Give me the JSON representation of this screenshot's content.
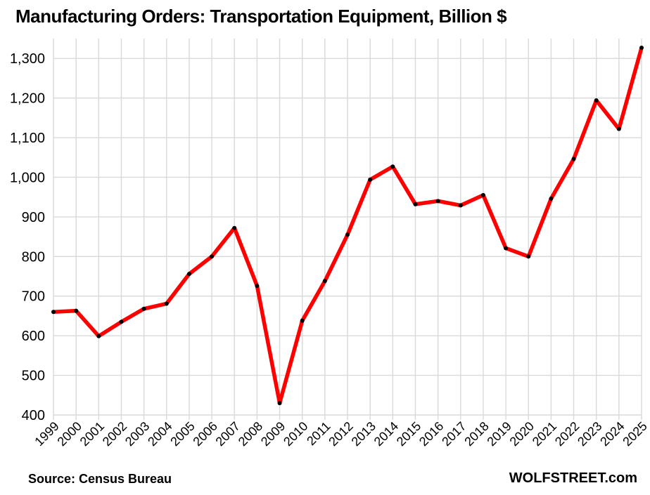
{
  "title": "Manufacturing Orders: Transportation Equipment, Billion $",
  "footer": {
    "source": "Source: Census Bureau",
    "brand": "WOLFSTREET.com"
  },
  "chart_data": {
    "type": "line",
    "title": "Manufacturing Orders: Transportation Equipment, Billion $",
    "x": [
      1999,
      2000,
      2001,
      2002,
      2003,
      2004,
      2005,
      2006,
      2007,
      2008,
      2009,
      2010,
      2011,
      2012,
      2013,
      2014,
      2015,
      2016,
      2017,
      2018,
      2019,
      2020,
      2021,
      2022,
      2023,
      2024,
      2025
    ],
    "series": [
      {
        "name": "Transportation equipment orders, billion $",
        "values": [
          660,
          663,
          599,
          635,
          668,
          681,
          756,
          800,
          872,
          726,
          430,
          638,
          738,
          855,
          994,
          1027,
          932,
          940,
          929,
          955,
          821,
          800,
          946,
          1046,
          1194,
          1122,
          1327
        ]
      }
    ],
    "xlabel": "",
    "ylabel": "",
    "ylim": [
      400,
      1350
    ],
    "yticks": [
      400,
      500,
      600,
      700,
      800,
      900,
      1000,
      1100,
      1200,
      1300
    ],
    "grid": true,
    "legend_position": "none",
    "line_color": "#FF0000",
    "marker_color": "#000000",
    "grid_color": "#D9D9D9"
  }
}
